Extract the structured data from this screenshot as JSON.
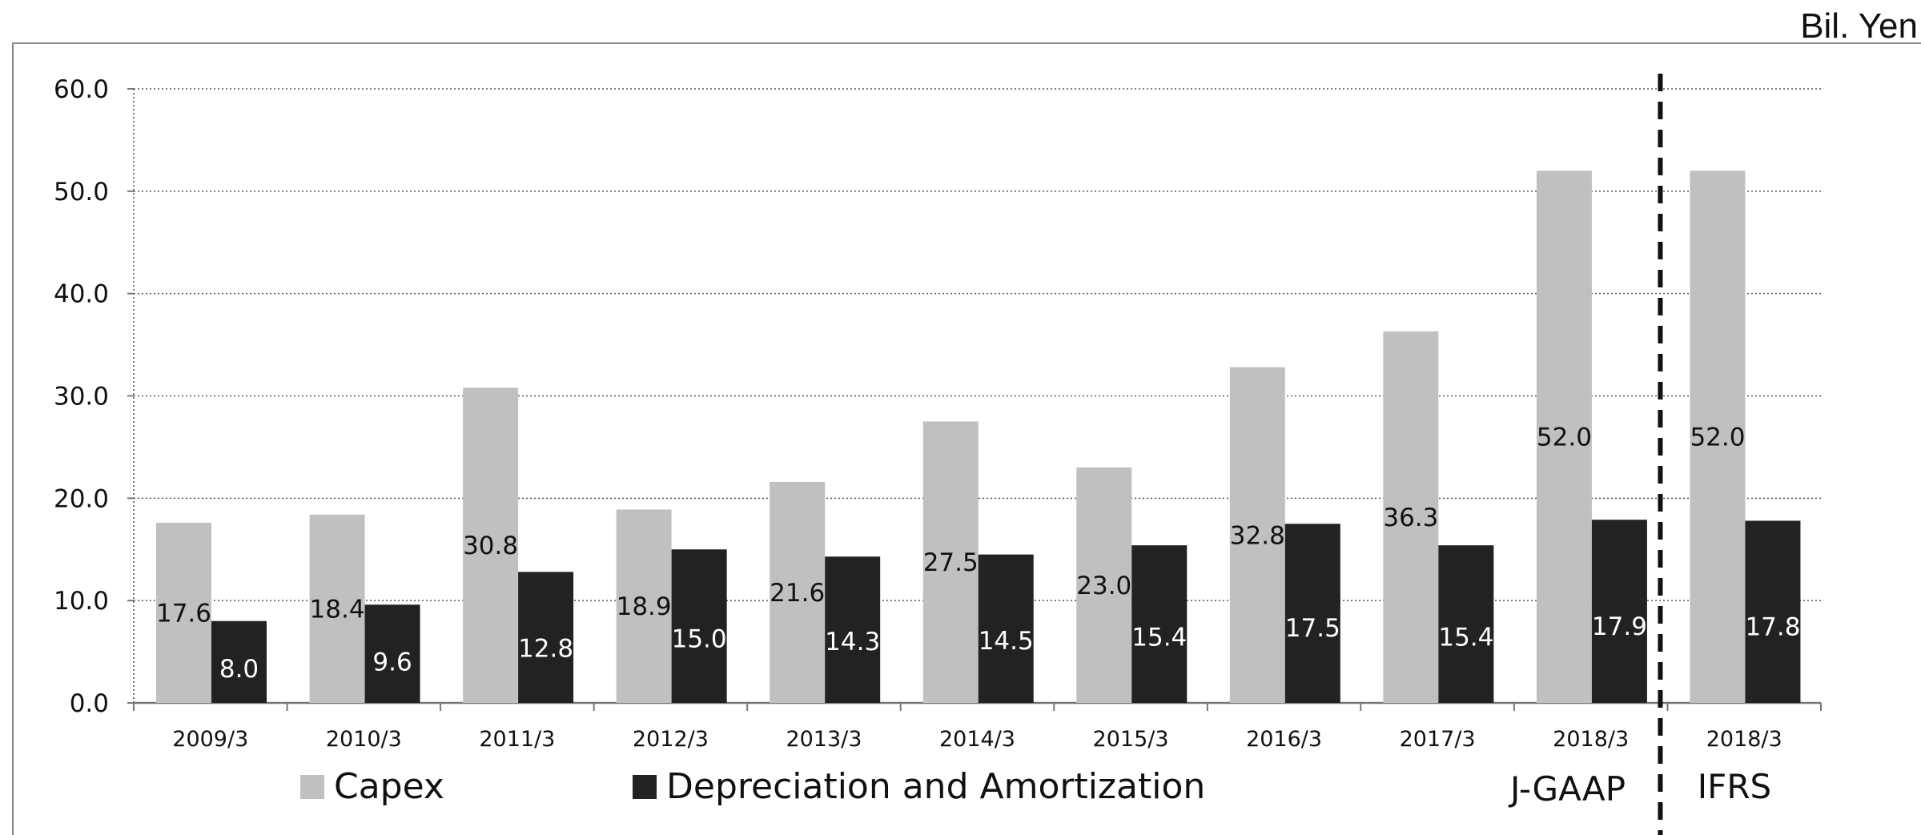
{
  "unit_label": "Bil. Yen",
  "chart_data": {
    "type": "bar",
    "categories": [
      "2009/3",
      "2010/3",
      "2011/3",
      "2012/3",
      "2013/3",
      "2014/3",
      "2015/3",
      "2016/3",
      "2017/3",
      "2018/3",
      "2018/3"
    ],
    "series": [
      {
        "name": "Capex",
        "color": "#c0c0c0",
        "label_color": "#111111",
        "values": [
          17.6,
          18.4,
          30.8,
          18.9,
          21.6,
          27.5,
          23.0,
          32.8,
          36.3,
          52.0,
          52.0
        ]
      },
      {
        "name": "Depreciation and Amortization",
        "color": "#222222",
        "label_color": "#ffffff",
        "values": [
          8.0,
          9.6,
          12.8,
          15.0,
          14.3,
          14.5,
          15.4,
          17.5,
          15.4,
          17.9,
          17.8
        ]
      }
    ],
    "ylim": [
      0,
      60
    ],
    "yticks": [
      "0.0",
      "10.0",
      "20.0",
      "30.0",
      "40.0",
      "50.0",
      "60.0"
    ],
    "grid": true,
    "legend_position": "bottom-left",
    "annotations": {
      "left_standard": "J-GAAP",
      "right_standard": "IFRS"
    }
  }
}
